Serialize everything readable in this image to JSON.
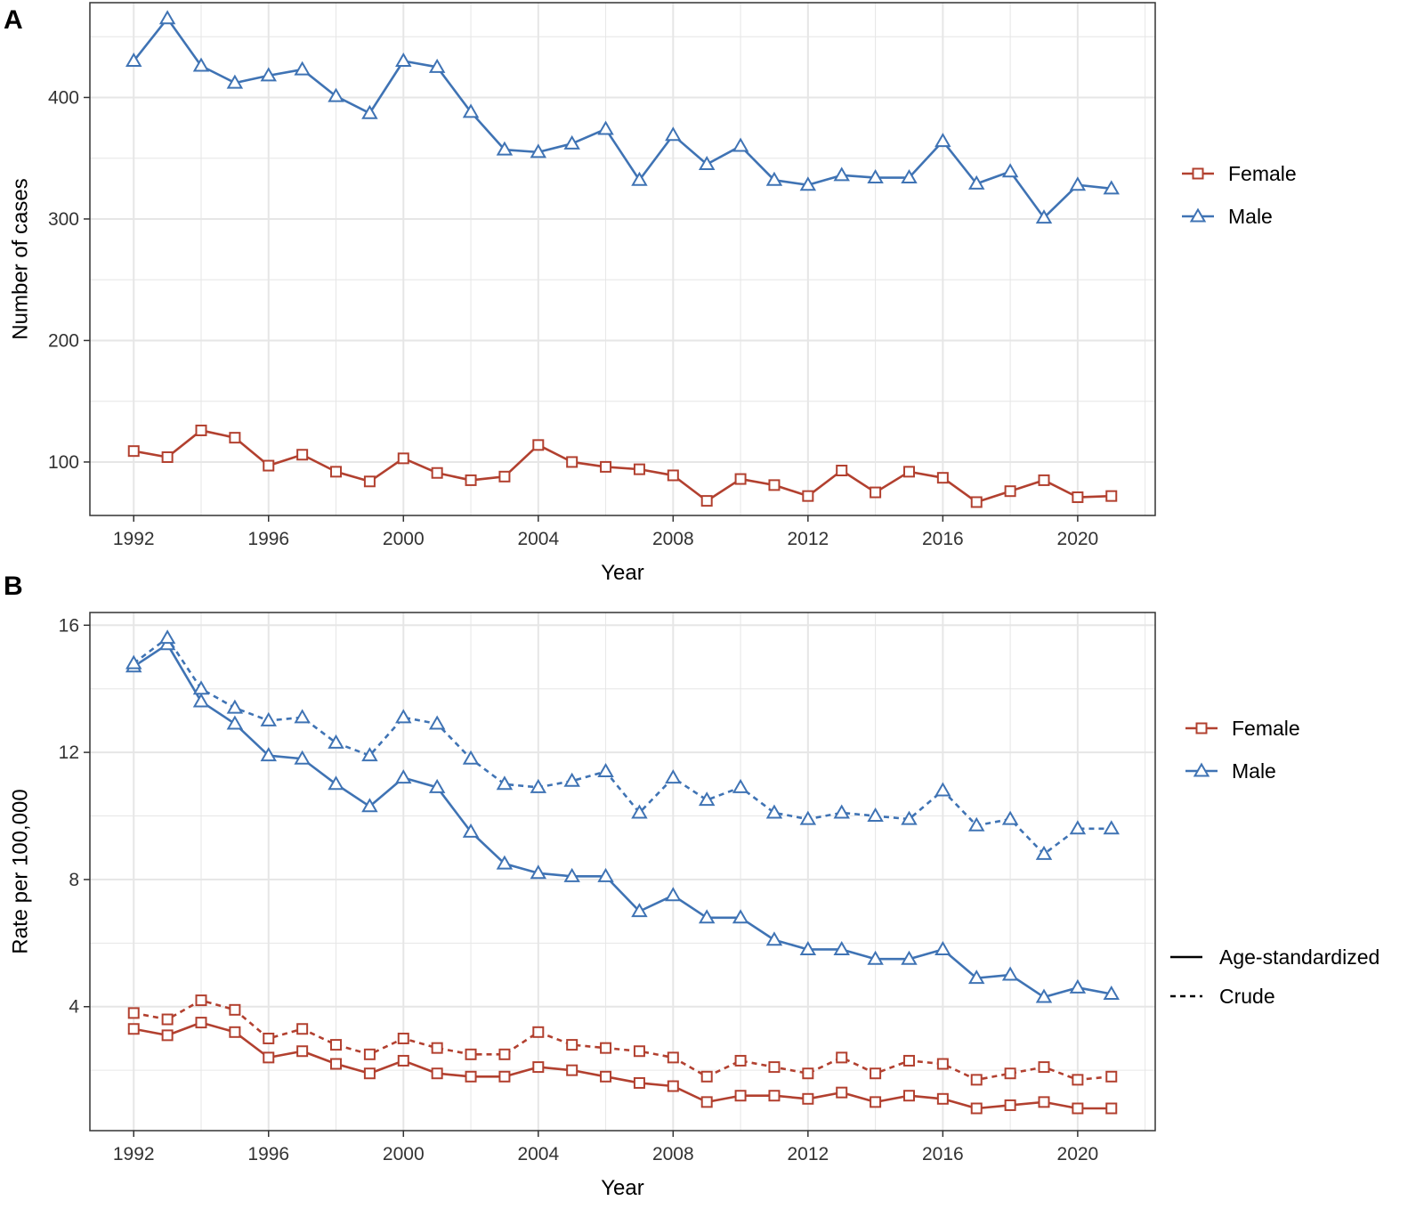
{
  "colors": {
    "female": "#b2402f",
    "male": "#3f73b4",
    "grid": "#e6e6e6",
    "frame": "#333333"
  },
  "chart_data": [
    {
      "panel": "A",
      "type": "line",
      "xlabel": "Year",
      "ylabel": "Number of cases",
      "xlim": [
        1990.7,
        2022.3
      ],
      "ylim": [
        56,
        478
      ],
      "xticks": [
        1992,
        1996,
        2000,
        2004,
        2008,
        2012,
        2016,
        2020
      ],
      "yticks": [
        100,
        200,
        300,
        400
      ],
      "grid": true,
      "legend_position": "right",
      "legend": [
        {
          "name": "Female",
          "marker": "square",
          "color": "#b2402f"
        },
        {
          "name": "Male",
          "marker": "triangle",
          "color": "#3f73b4"
        }
      ],
      "x": [
        1992,
        1993,
        1994,
        1995,
        1996,
        1997,
        1998,
        1999,
        2000,
        2001,
        2002,
        2003,
        2004,
        2005,
        2006,
        2007,
        2008,
        2009,
        2010,
        2011,
        2012,
        2013,
        2014,
        2015,
        2016,
        2017,
        2018,
        2019,
        2020,
        2021
      ],
      "series": [
        {
          "name": "Female",
          "marker": "square",
          "style": "solid",
          "color": "#b2402f",
          "values": [
            109,
            104,
            126,
            120,
            97,
            106,
            92,
            84,
            103,
            91,
            85,
            88,
            114,
            100,
            96,
            94,
            89,
            68,
            86,
            81,
            72,
            93,
            75,
            92,
            87,
            67,
            76,
            85,
            71,
            72
          ]
        },
        {
          "name": "Male",
          "marker": "triangle",
          "style": "solid",
          "color": "#3f73b4",
          "values": [
            430,
            465,
            426,
            412,
            418,
            423,
            401,
            387,
            430,
            425,
            388,
            357,
            355,
            362,
            374,
            332,
            369,
            345,
            360,
            332,
            328,
            336,
            334,
            334,
            364,
            329,
            339,
            301,
            328,
            325
          ]
        }
      ]
    },
    {
      "panel": "B",
      "type": "line",
      "xlabel": "Year",
      "ylabel": "Rate per 100,000",
      "xlim": [
        1990.7,
        2022.3
      ],
      "ylim": [
        0.1,
        16.4
      ],
      "xticks": [
        1992,
        1996,
        2000,
        2004,
        2008,
        2012,
        2016,
        2020
      ],
      "yticks": [
        4,
        8,
        12,
        16
      ],
      "grid": true,
      "legend_position": "right",
      "legend": [
        {
          "name": "Female",
          "marker": "square",
          "color": "#b2402f"
        },
        {
          "name": "Male",
          "marker": "triangle",
          "color": "#3f73b4"
        }
      ],
      "linetype_legend": [
        {
          "name": "Age-standardized",
          "style": "solid"
        },
        {
          "name": "Crude",
          "style": "dashed"
        }
      ],
      "x": [
        1992,
        1993,
        1994,
        1995,
        1996,
        1997,
        1998,
        1999,
        2000,
        2001,
        2002,
        2003,
        2004,
        2005,
        2006,
        2007,
        2008,
        2009,
        2010,
        2011,
        2012,
        2013,
        2014,
        2015,
        2016,
        2017,
        2018,
        2019,
        2020,
        2021
      ],
      "series": [
        {
          "group": "Female",
          "linetype": "Age-standardized",
          "marker": "square",
          "style": "solid",
          "color": "#b2402f",
          "values": [
            3.3,
            3.1,
            3.5,
            3.2,
            2.4,
            2.6,
            2.2,
            1.9,
            2.3,
            1.9,
            1.8,
            1.8,
            2.1,
            2.0,
            1.8,
            1.6,
            1.5,
            1.0,
            1.2,
            1.2,
            1.1,
            1.3,
            1.0,
            1.2,
            1.1,
            0.8,
            0.9,
            1.0,
            0.8,
            0.8
          ]
        },
        {
          "group": "Female",
          "linetype": "Crude",
          "marker": "square",
          "style": "dashed",
          "color": "#b2402f",
          "values": [
            3.8,
            3.6,
            4.2,
            3.9,
            3.0,
            3.3,
            2.8,
            2.5,
            3.0,
            2.7,
            2.5,
            2.5,
            3.2,
            2.8,
            2.7,
            2.6,
            2.4,
            1.8,
            2.3,
            2.1,
            1.9,
            2.4,
            1.9,
            2.3,
            2.2,
            1.7,
            1.9,
            2.1,
            1.7,
            1.8
          ]
        },
        {
          "group": "Male",
          "linetype": "Age-standardized",
          "marker": "triangle",
          "style": "solid",
          "color": "#3f73b4",
          "values": [
            14.7,
            15.4,
            13.6,
            12.9,
            11.9,
            11.8,
            11.0,
            10.3,
            11.2,
            10.9,
            9.5,
            8.5,
            8.2,
            8.1,
            8.1,
            7.0,
            7.5,
            6.8,
            6.8,
            6.1,
            5.8,
            5.8,
            5.5,
            5.5,
            5.8,
            4.9,
            5.0,
            4.3,
            4.6,
            4.4
          ]
        },
        {
          "group": "Male",
          "linetype": "Crude",
          "marker": "triangle",
          "style": "dashed",
          "color": "#3f73b4",
          "values": [
            14.8,
            15.6,
            14.0,
            13.4,
            13.0,
            13.1,
            12.3,
            11.9,
            13.1,
            12.9,
            11.8,
            11.0,
            10.9,
            11.1,
            11.4,
            10.1,
            11.2,
            10.5,
            10.9,
            10.1,
            9.9,
            10.1,
            10.0,
            9.9,
            10.8,
            9.7,
            9.9,
            8.8,
            9.6,
            9.6
          ]
        }
      ]
    }
  ]
}
